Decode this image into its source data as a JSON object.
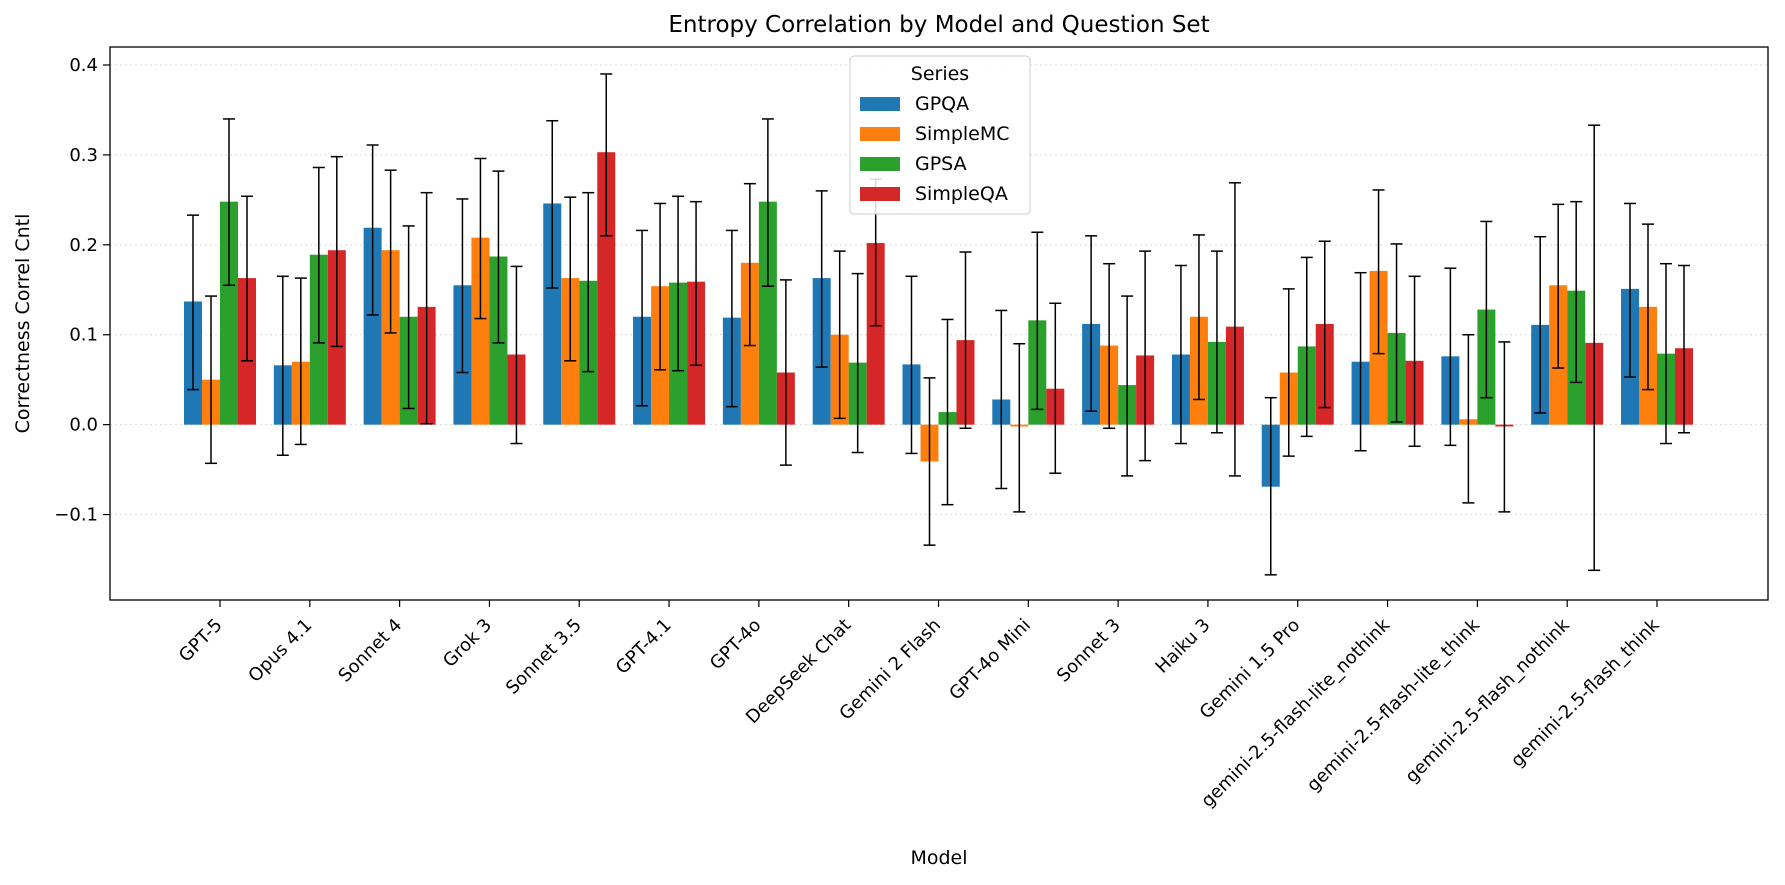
{
  "chart_data": {
    "type": "bar",
    "title": "Entropy Correlation by Model and Question Set",
    "xlabel": "Model",
    "ylabel": "Correctness Correl Cntl",
    "ylim": [
      -0.195,
      0.42
    ],
    "yticks": [
      -0.1,
      0.0,
      0.1,
      0.2,
      0.3,
      0.4
    ],
    "ytick_labels": [
      "−0.1",
      "0.0",
      "0.1",
      "0.2",
      "0.3",
      "0.4"
    ],
    "grid": "horizontal-dotted",
    "legend_title": "Series",
    "legend_position": "top-center",
    "categories": [
      "GPT-5",
      "Opus 4.1",
      "Sonnet 4",
      "Grok 3",
      "Sonnet 3.5",
      "GPT-4.1",
      "GPT-4o",
      "DeepSeek Chat",
      "Gemini 2 Flash",
      "GPT-4o Mini",
      "Sonnet 3",
      "Haiku 3",
      "Gemini 1.5 Pro",
      "gemini-2.5-flash-lite_nothink",
      "gemini-2.5-flash-lite_think",
      "gemini-2.5-flash_nothink",
      "gemini-2.5-flash_think"
    ],
    "series": [
      {
        "name": "GPQA",
        "color": "#1f77b4",
        "values": [
          0.137,
          0.066,
          0.219,
          0.155,
          0.246,
          0.12,
          0.119,
          0.163,
          0.067,
          0.028,
          0.112,
          0.078,
          -0.069,
          0.07,
          0.076,
          0.111,
          0.151
        ],
        "err_low": [
          0.039,
          -0.034,
          0.122,
          0.058,
          0.152,
          0.021,
          0.02,
          0.064,
          -0.032,
          -0.071,
          0.015,
          -0.021,
          -0.167,
          -0.029,
          -0.023,
          0.013,
          0.053
        ],
        "err_high": [
          0.233,
          0.165,
          0.311,
          0.251,
          0.338,
          0.216,
          0.216,
          0.26,
          0.165,
          0.127,
          0.21,
          0.177,
          0.03,
          0.169,
          0.174,
          0.209,
          0.246
        ]
      },
      {
        "name": "SimpleMC",
        "color": "#ff7f0e",
        "values": [
          0.05,
          0.07,
          0.194,
          0.208,
          0.163,
          0.154,
          0.18,
          0.1,
          -0.041,
          -0.002,
          0.088,
          0.12,
          0.058,
          0.171,
          0.006,
          0.155,
          0.131
        ],
        "err_low": [
          -0.043,
          -0.022,
          0.102,
          0.118,
          0.071,
          0.061,
          0.088,
          0.007,
          -0.134,
          -0.097,
          -0.004,
          0.028,
          -0.035,
          0.079,
          -0.087,
          0.063,
          0.039
        ],
        "err_high": [
          0.143,
          0.163,
          0.283,
          0.296,
          0.253,
          0.246,
          0.268,
          0.193,
          0.052,
          0.09,
          0.179,
          0.211,
          0.151,
          0.261,
          0.1,
          0.245,
          0.223
        ]
      },
      {
        "name": "GPSA",
        "color": "#2ca02c",
        "values": [
          0.248,
          0.189,
          0.12,
          0.187,
          0.16,
          0.158,
          0.248,
          0.069,
          0.014,
          0.116,
          0.044,
          0.092,
          0.087,
          0.102,
          0.128,
          0.149,
          0.079
        ],
        "err_low": [
          0.155,
          0.091,
          0.018,
          0.091,
          0.059,
          0.06,
          0.154,
          -0.031,
          -0.089,
          0.017,
          -0.057,
          -0.009,
          -0.013,
          0.003,
          0.03,
          0.047,
          -0.021
        ],
        "err_high": [
          0.34,
          0.286,
          0.221,
          0.282,
          0.258,
          0.254,
          0.34,
          0.168,
          0.117,
          0.214,
          0.143,
          0.193,
          0.186,
          0.201,
          0.226,
          0.248,
          0.179
        ]
      },
      {
        "name": "SimpleQA",
        "color": "#d62728",
        "values": [
          0.163,
          0.194,
          0.131,
          0.078,
          0.303,
          0.159,
          0.058,
          0.202,
          0.094,
          0.04,
          0.077,
          0.109,
          0.112,
          0.071,
          -0.002,
          0.091,
          0.085
        ],
        "err_low": [
          0.071,
          0.087,
          0.001,
          -0.021,
          0.21,
          0.066,
          -0.045,
          0.11,
          -0.004,
          -0.054,
          -0.04,
          -0.057,
          0.019,
          -0.024,
          -0.097,
          -0.162,
          -0.009
        ],
        "err_high": [
          0.254,
          0.298,
          0.258,
          0.176,
          0.39,
          0.248,
          0.161,
          0.273,
          0.192,
          0.135,
          0.193,
          0.269,
          0.204,
          0.165,
          0.092,
          0.333,
          0.177
        ]
      }
    ]
  }
}
